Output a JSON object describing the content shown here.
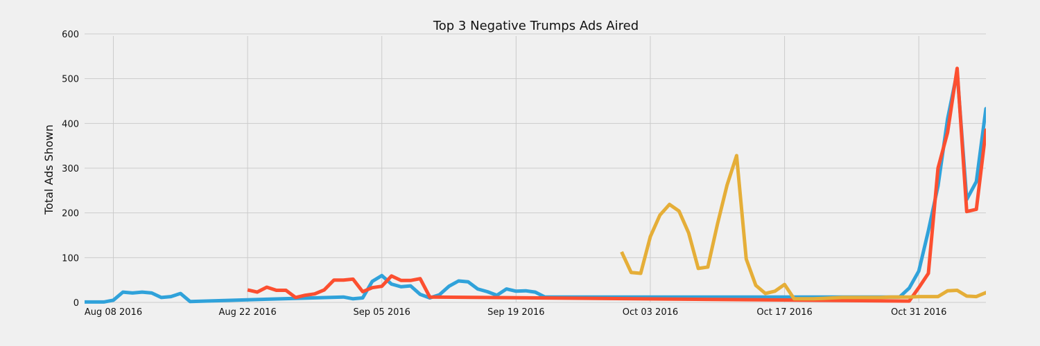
{
  "chart_data": {
    "type": "line",
    "title": "Top 3 Negative Trumps Ads Aired",
    "xlabel": "",
    "ylabel": "Total Ads Shown",
    "xlim": [
      "2016-08-05",
      "2016-11-07"
    ],
    "ylim": [
      0,
      600
    ],
    "grid": true,
    "legend": "none",
    "x_ticks": [
      {
        "date": "2016-08-08",
        "label": "Aug 08 2016"
      },
      {
        "date": "2016-08-22",
        "label": "Aug 22 2016"
      },
      {
        "date": "2016-09-05",
        "label": "Sep 05 2016"
      },
      {
        "date": "2016-09-19",
        "label": "Sep 19 2016"
      },
      {
        "date": "2016-10-03",
        "label": "Oct 03 2016"
      },
      {
        "date": "2016-10-17",
        "label": "Oct 17 2016"
      },
      {
        "date": "2016-10-31",
        "label": "Oct 31 2016"
      }
    ],
    "y_ticks": [
      0,
      100,
      200,
      300,
      400,
      500,
      600
    ],
    "series": [
      {
        "color": "#30a2da",
        "points": [
          [
            "2016-08-05",
            1
          ],
          [
            "2016-08-06",
            1
          ],
          [
            "2016-08-07",
            1
          ],
          [
            "2016-08-08",
            5
          ],
          [
            "2016-08-09",
            23
          ],
          [
            "2016-08-10",
            21
          ],
          [
            "2016-08-11",
            23
          ],
          [
            "2016-08-12",
            21
          ],
          [
            "2016-08-13",
            11
          ],
          [
            "2016-08-14",
            13
          ],
          [
            "2016-08-15",
            20
          ],
          [
            "2016-08-16",
            2
          ],
          [
            "2016-09-01",
            12
          ],
          [
            "2016-09-02",
            8
          ],
          [
            "2016-09-03",
            10
          ],
          [
            "2016-09-04",
            47
          ],
          [
            "2016-09-05",
            60
          ],
          [
            "2016-09-06",
            41
          ],
          [
            "2016-09-07",
            35
          ],
          [
            "2016-09-08",
            37
          ],
          [
            "2016-09-09",
            18
          ],
          [
            "2016-09-10",
            10
          ],
          [
            "2016-09-11",
            17
          ],
          [
            "2016-09-12",
            36
          ],
          [
            "2016-09-13",
            48
          ],
          [
            "2016-09-14",
            46
          ],
          [
            "2016-09-15",
            30
          ],
          [
            "2016-09-16",
            24
          ],
          [
            "2016-09-17",
            16
          ],
          [
            "2016-09-18",
            30
          ],
          [
            "2016-09-19",
            25
          ],
          [
            "2016-09-20",
            26
          ],
          [
            "2016-09-21",
            23
          ],
          [
            "2016-09-22",
            12
          ],
          [
            "2016-10-29",
            12
          ],
          [
            "2016-10-30",
            32
          ],
          [
            "2016-10-31",
            70
          ],
          [
            "2016-11-01",
            160
          ],
          [
            "2016-11-02",
            260
          ],
          [
            "2016-11-03",
            410
          ],
          [
            "2016-11-04",
            515
          ],
          [
            "2016-11-05",
            230
          ],
          [
            "2016-11-06",
            270
          ],
          [
            "2016-11-07",
            433
          ],
          [
            "2016-11-07.6",
            350
          ]
        ]
      },
      {
        "color": "#fc4f30",
        "points": [
          [
            "2016-08-22",
            28
          ],
          [
            "2016-08-23",
            23
          ],
          [
            "2016-08-24",
            34
          ],
          [
            "2016-08-25",
            27
          ],
          [
            "2016-08-26",
            27
          ],
          [
            "2016-08-27",
            11
          ],
          [
            "2016-08-28",
            16
          ],
          [
            "2016-08-29",
            19
          ],
          [
            "2016-08-30",
            28
          ],
          [
            "2016-08-31",
            50
          ],
          [
            "2016-09-01",
            50
          ],
          [
            "2016-09-02",
            52
          ],
          [
            "2016-09-03",
            24
          ],
          [
            "2016-09-04",
            33
          ],
          [
            "2016-09-05",
            36
          ],
          [
            "2016-09-06",
            59
          ],
          [
            "2016-09-07",
            49
          ],
          [
            "2016-09-08",
            49
          ],
          [
            "2016-09-09",
            53
          ],
          [
            "2016-09-10",
            12
          ],
          [
            "2016-10-30",
            3
          ],
          [
            "2016-10-31",
            33
          ],
          [
            "2016-11-01",
            65
          ],
          [
            "2016-11-02",
            300
          ],
          [
            "2016-11-03",
            380
          ],
          [
            "2016-11-04",
            523
          ],
          [
            "2016-11-05",
            203
          ],
          [
            "2016-11-06",
            208
          ],
          [
            "2016-11-07",
            385
          ],
          [
            "2016-11-07.6",
            288
          ]
        ]
      },
      {
        "color": "#e5ae38",
        "points": [
          [
            "2016-09-30",
            113
          ],
          [
            "2016-10-01",
            67
          ],
          [
            "2016-10-02",
            65
          ],
          [
            "2016-10-03",
            147
          ],
          [
            "2016-10-04",
            195
          ],
          [
            "2016-10-05",
            219
          ],
          [
            "2016-10-06",
            204
          ],
          [
            "2016-10-07",
            155
          ],
          [
            "2016-10-08",
            76
          ],
          [
            "2016-10-09",
            79
          ],
          [
            "2016-10-10",
            175
          ],
          [
            "2016-10-11",
            262
          ],
          [
            "2016-10-12",
            328
          ],
          [
            "2016-10-13",
            97
          ],
          [
            "2016-10-14",
            38
          ],
          [
            "2016-10-15",
            20
          ],
          [
            "2016-10-16",
            25
          ],
          [
            "2016-10-17",
            40
          ],
          [
            "2016-10-18",
            8
          ],
          [
            "2016-10-19",
            8
          ],
          [
            "2016-10-20",
            8
          ],
          [
            "2016-10-21",
            9
          ],
          [
            "2016-10-22",
            10
          ],
          [
            "2016-10-23",
            11
          ],
          [
            "2016-10-24",
            11
          ],
          [
            "2016-10-25",
            11
          ],
          [
            "2016-10-26",
            11
          ],
          [
            "2016-10-27",
            11
          ],
          [
            "2016-10-28",
            12
          ],
          [
            "2016-10-29",
            12
          ],
          [
            "2016-10-30",
            12
          ],
          [
            "2016-10-31",
            13
          ],
          [
            "2016-11-01",
            13
          ],
          [
            "2016-11-02",
            13
          ],
          [
            "2016-11-03",
            26
          ],
          [
            "2016-11-04",
            27
          ],
          [
            "2016-11-05",
            14
          ],
          [
            "2016-11-06",
            13
          ],
          [
            "2016-11-07",
            22
          ],
          [
            "2016-11-07.6",
            10
          ]
        ]
      }
    ]
  }
}
